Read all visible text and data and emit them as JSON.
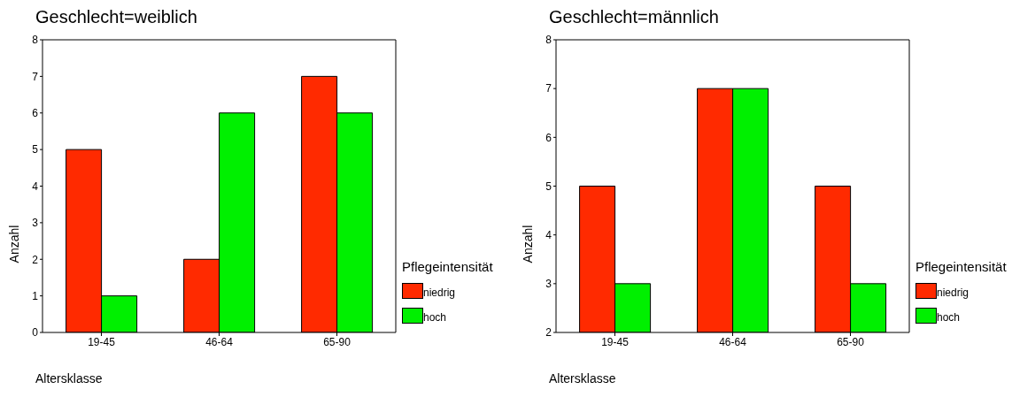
{
  "chart_data": [
    {
      "type": "bar",
      "title": "Geschlecht=weiblich",
      "xlabel": "Altersklasse",
      "ylabel": "Anzahl",
      "legend_title": "Pflegeintensität",
      "legend": "right",
      "categories": [
        "19-45",
        "46-64",
        "65-90"
      ],
      "ylim": [
        0,
        8
      ],
      "yticks": [
        0,
        1,
        2,
        3,
        4,
        5,
        6,
        7,
        8
      ],
      "series": [
        {
          "name": "niedrig",
          "color": "#ff2a00",
          "values": [
            5,
            2,
            7
          ]
        },
        {
          "name": "hoch",
          "color": "#00f000",
          "values": [
            1,
            6,
            6
          ]
        }
      ]
    },
    {
      "type": "bar",
      "title": "Geschlecht=männlich",
      "xlabel": "Altersklasse",
      "ylabel": "Anzahl",
      "legend_title": "Pflegeintensität",
      "legend": "right",
      "categories": [
        "19-45",
        "46-64",
        "65-90"
      ],
      "ylim": [
        2,
        8
      ],
      "yticks": [
        2,
        3,
        4,
        5,
        6,
        7,
        8
      ],
      "series": [
        {
          "name": "niedrig",
          "color": "#ff2a00",
          "values": [
            5,
            7,
            5
          ]
        },
        {
          "name": "hoch",
          "color": "#00f000",
          "values": [
            3,
            7,
            3
          ]
        }
      ]
    }
  ]
}
